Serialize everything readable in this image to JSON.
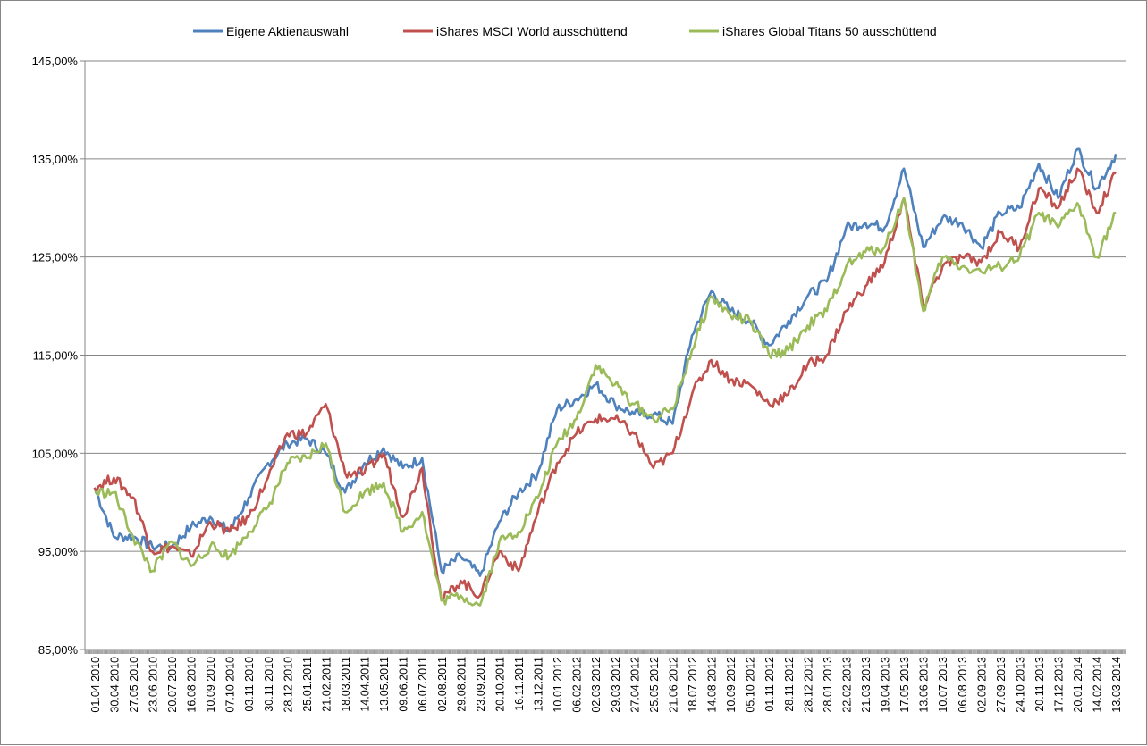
{
  "chart_data": {
    "type": "line",
    "title": "",
    "xlabel": "",
    "ylabel": "",
    "ylim": [
      85,
      145
    ],
    "y_ticks": [
      85,
      95,
      105,
      115,
      125,
      135,
      145
    ],
    "y_tick_labels": [
      "85,00%",
      "95,00%",
      "105,00%",
      "115,00%",
      "125,00%",
      "135,00%",
      "145,00%"
    ],
    "grid": "horizontal",
    "legend_position": "top",
    "x_tick_labels": [
      "01.04.2010",
      "30.04.2010",
      "27.05.2010",
      "23.06.2010",
      "20.07.2010",
      "16.08.2010",
      "10.09.2010",
      "07.10.2010",
      "03.11.2010",
      "30.11.2010",
      "28.12.2010",
      "25.01.2011",
      "21.02.2011",
      "18.03.2011",
      "14.04.2011",
      "13.05.2011",
      "09.06.2011",
      "06.07.2011",
      "02.08.2011",
      "29.08.2011",
      "23.09.2011",
      "20.10.2011",
      "16.11.2011",
      "13.12.2011",
      "10.01.2012",
      "06.02.2012",
      "02.03.2012",
      "29.03.2012",
      "27.04.2012",
      "25.05.2012",
      "21.06.2012",
      "18.07.2012",
      "14.08.2012",
      "10.09.2012",
      "05.10.2012",
      "01.11.2012",
      "28.11.2012",
      "28.12.2012",
      "28.01.2013",
      "22.02.2013",
      "21.03.2013",
      "19.04.2013",
      "17.05.2013",
      "13.06.2013",
      "10.07.2013",
      "06.08.2013",
      "02.09.2013",
      "27.09.2013",
      "24.10.2013",
      "20.11.2013",
      "17.12.2013",
      "20.01.2014",
      "14.02.2014",
      "13.03.2014"
    ],
    "series": [
      {
        "name": "Eigene Aktienauswahl",
        "color": "#4F81BD",
        "values": [
          101.5,
          96.5,
          96.5,
          95.5,
          95.5,
          97.5,
          98.5,
          97,
          100.5,
          104,
          106,
          106.5,
          105,
          101,
          104,
          105.5,
          103.5,
          104.5,
          93,
          94.5,
          92.5,
          98,
          101,
          103,
          109.5,
          110.5,
          112,
          110,
          109,
          109,
          108,
          117,
          121.5,
          119.5,
          118.5,
          116,
          118.5,
          121,
          122.5,
          128,
          128.5,
          128,
          134,
          126,
          129,
          128.5,
          126,
          129.5,
          130,
          134.5,
          131,
          136,
          132,
          135.5
        ]
      },
      {
        "name": "iShares MSCI World ausschüttend",
        "color": "#C0504D",
        "values": [
          101.5,
          102.5,
          100.5,
          95,
          95.5,
          94.5,
          98,
          97,
          98.5,
          102.5,
          107,
          107,
          110,
          103,
          103,
          105,
          98.5,
          103.5,
          90,
          92,
          90.5,
          95,
          93,
          99,
          104,
          107,
          108.5,
          108.5,
          107,
          103.5,
          105,
          111,
          114.5,
          112.5,
          112,
          110,
          111,
          114,
          115,
          119.5,
          122,
          124.5,
          131,
          120,
          124,
          125,
          124.5,
          127.5,
          126,
          132,
          130,
          134,
          129.5,
          133.5
        ]
      },
      {
        "name": "iShares Global Titans 50 ausschüttend",
        "color": "#9BBB59",
        "values": [
          101,
          101,
          96.5,
          93,
          96,
          93.5,
          95.5,
          94.5,
          97,
          99.5,
          104,
          104.5,
          106,
          99,
          101,
          102,
          97,
          99,
          90,
          90.5,
          89.5,
          96,
          97,
          100.5,
          106,
          108.5,
          114,
          112,
          110,
          108.5,
          109.5,
          115.5,
          121,
          119,
          118.5,
          115,
          115.5,
          118,
          119.5,
          124,
          125.5,
          126,
          131,
          119.5,
          125,
          124,
          123.5,
          124,
          125,
          129.5,
          128,
          130.5,
          125,
          129.5
        ]
      }
    ]
  }
}
